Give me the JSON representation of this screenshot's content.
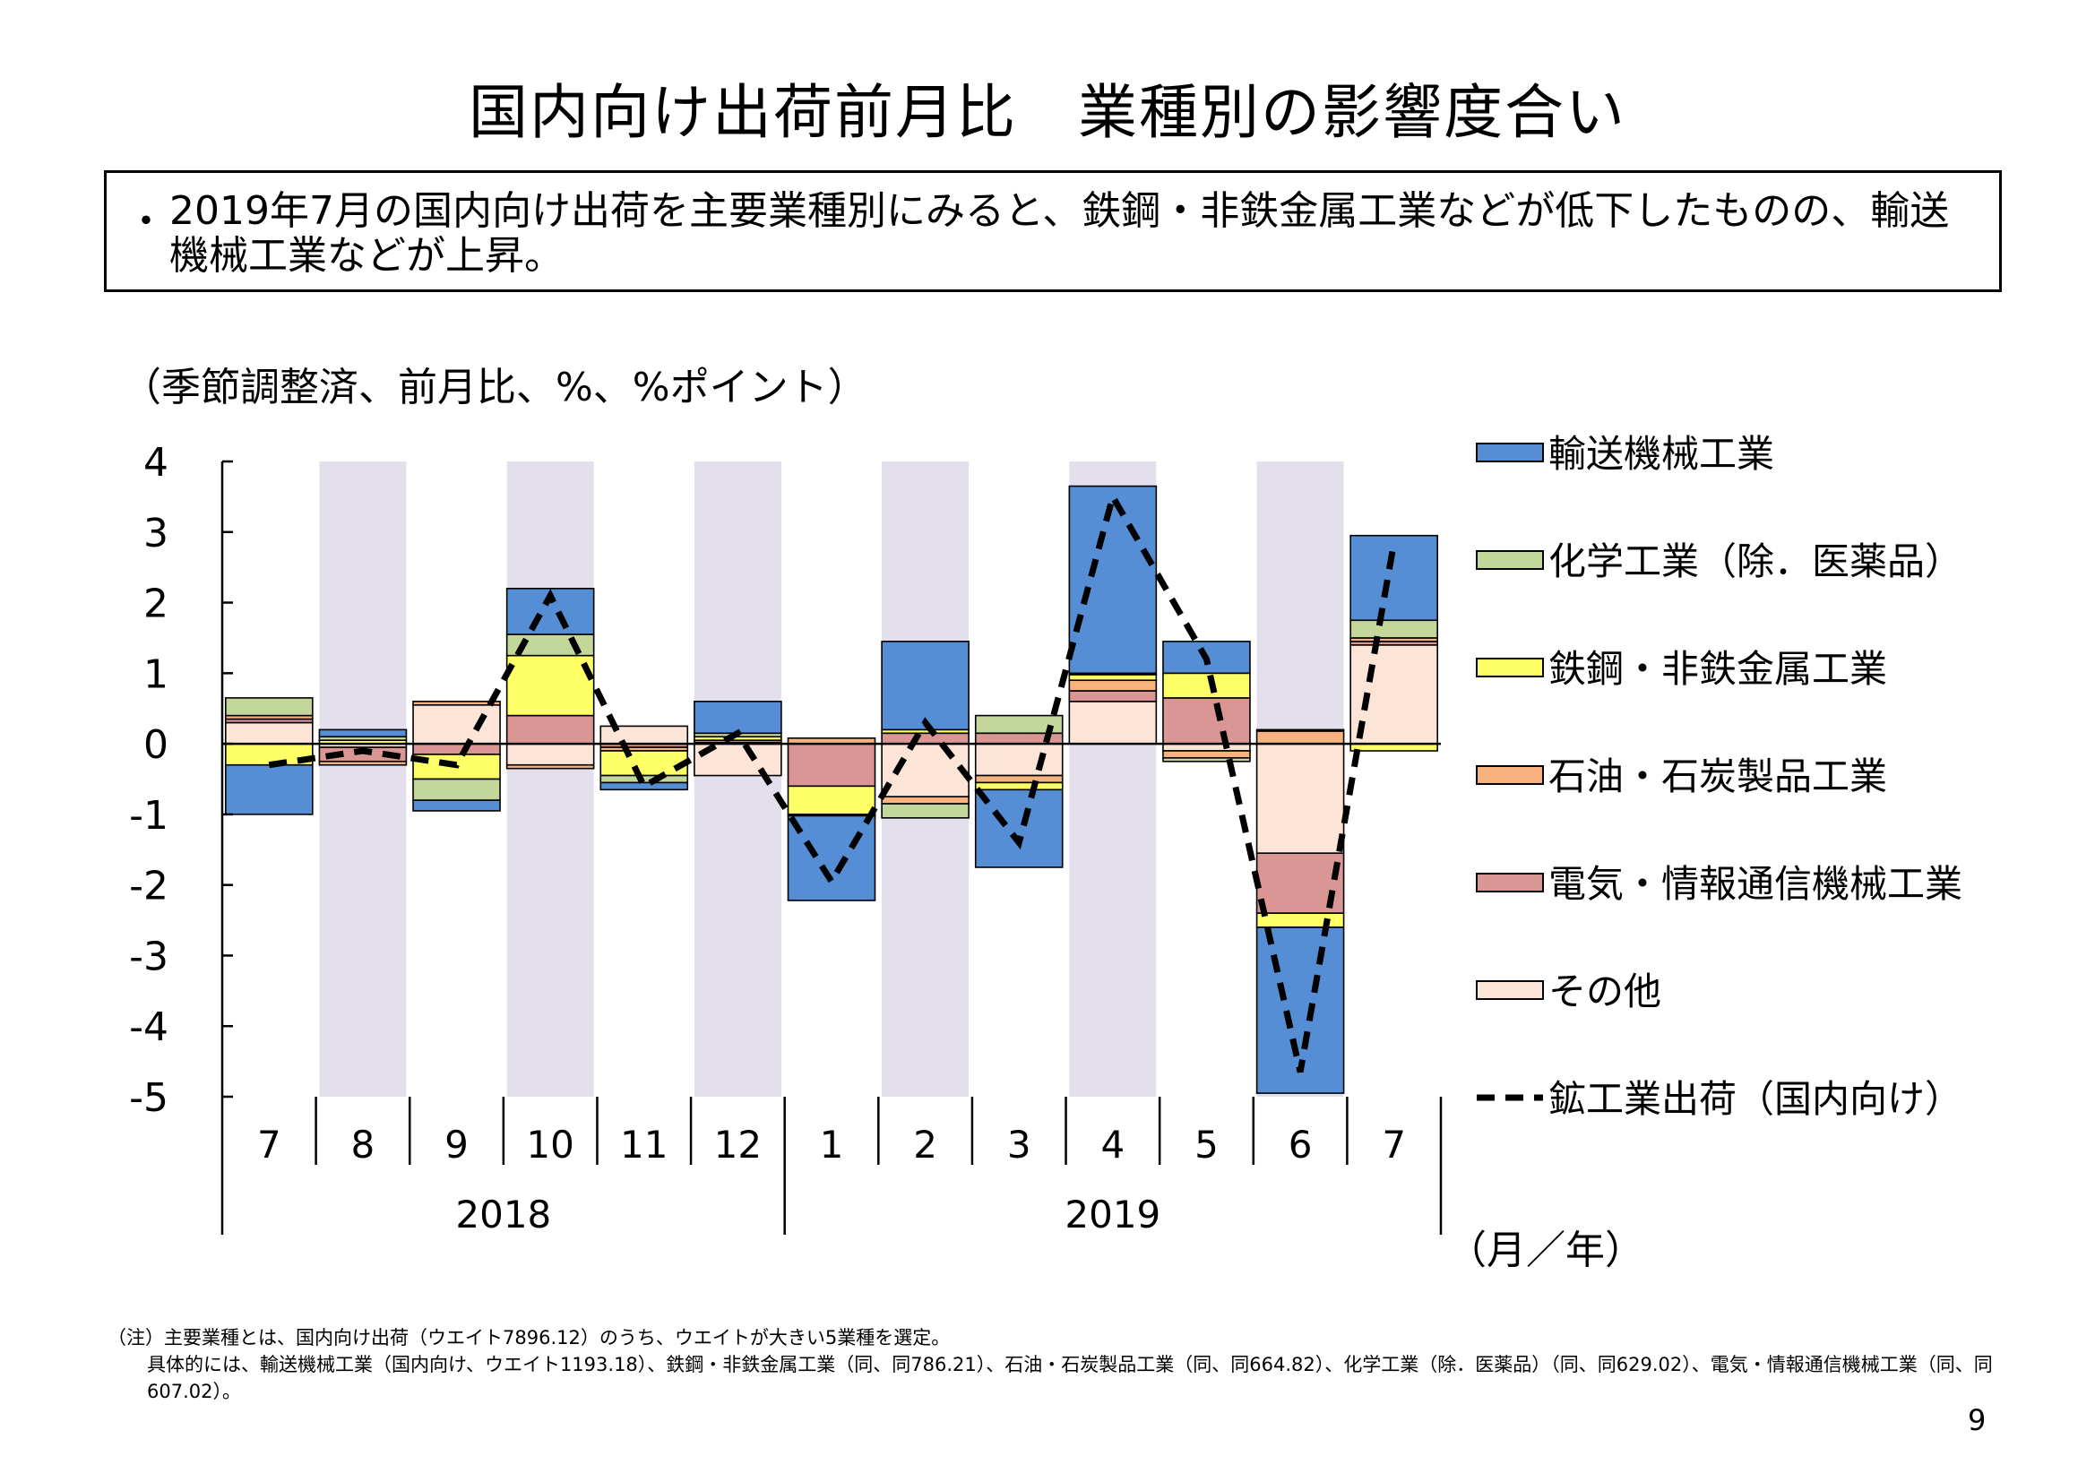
{
  "page": {
    "title": "国内向け出荷前月比　業種別の影響度合い",
    "summary_bullet": "・",
    "summary": "2019年7月の国内向け出荷を主要業種別にみると、鉄鋼・非鉄金属工業などが低下したものの、輸送機械工業などが上昇。",
    "units_note": "（季節調整済、前月比、%、%ポイント）",
    "footnote_lines": [
      "（注）主要業種とは、国内向け出荷（ウエイト7896.12）のうち、ウエイトが大きい5業種を選定。",
      "具体的には、輸送機械工業（国内向け、ウエイト1193.18）、鉄鋼・非鉄金属工業（同、同786.21）、石油・石炭製品工業（同、同664.82）、化学工業（除．医薬品）（同、同629.02）、電気・情報通信機械工業（同、同607.02）。"
    ],
    "page_number": "9"
  },
  "chart_data": {
    "type": "bar",
    "stacked": true,
    "categories": [
      "7",
      "8",
      "9",
      "10",
      "11",
      "12",
      "1",
      "2",
      "3",
      "4",
      "5",
      "6",
      "7"
    ],
    "year_groups": [
      {
        "label": "2018",
        "from": 0,
        "to": 5
      },
      {
        "label": "2019",
        "from": 6,
        "to": 12
      }
    ],
    "xlabel": "（月／年）",
    "ylim": [
      -5,
      4
    ],
    "yticks": [
      4,
      3,
      2,
      1,
      0,
      -1,
      -2,
      -3,
      -4,
      -5
    ],
    "shaded_categories": [
      1,
      3,
      5,
      7,
      9,
      11
    ],
    "shade_color": "#e3dfec",
    "series": [
      {
        "name": "その他",
        "color": "#fce4d6",
        "values": [
          0.3,
          -0.05,
          0.55,
          -0.3,
          0.25,
          -0.45,
          0.0,
          -0.75,
          -0.45,
          0.6,
          -0.1,
          -1.55,
          1.4
        ]
      },
      {
        "name": "電気・情報通信機械工業",
        "color": "#da9694",
        "values": [
          0.05,
          -0.2,
          -0.15,
          0.4,
          -0.05,
          0.02,
          -0.6,
          0.15,
          0.15,
          0.15,
          0.65,
          -0.85,
          0.05
        ]
      },
      {
        "name": "石油・石炭製品工業",
        "color": "#f7b27d",
        "values": [
          0.05,
          -0.05,
          0.05,
          -0.05,
          -0.05,
          0.03,
          0.08,
          -0.1,
          -0.1,
          0.15,
          -0.1,
          0.18,
          0.05
        ]
      },
      {
        "name": "鉄鋼・非鉄金属工業",
        "color": "#ffff66",
        "values": [
          -0.3,
          0.05,
          -0.35,
          0.85,
          -0.35,
          0.05,
          -0.4,
          0.05,
          -0.1,
          0.08,
          0.35,
          -0.2,
          -0.1
        ]
      },
      {
        "name": "化学工業（除．医薬品）",
        "color": "#c4d79b",
        "values": [
          0.25,
          0.05,
          -0.3,
          0.3,
          -0.1,
          0.05,
          -0.02,
          -0.2,
          0.25,
          0.02,
          -0.05,
          0.02,
          0.25
        ]
      },
      {
        "name": "輸送機械工業",
        "color": "#558ed5",
        "values": [
          -0.7,
          0.1,
          -0.15,
          0.65,
          -0.1,
          0.45,
          -1.2,
          1.25,
          -1.1,
          2.65,
          0.45,
          -2.35,
          1.2
        ]
      }
    ],
    "line_series": {
      "name": "鉱工業出荷（国内向け）",
      "style": "dashed",
      "color": "#000000",
      "values": [
        -0.3,
        -0.1,
        -0.3,
        2.1,
        -0.6,
        0.15,
        -1.95,
        0.3,
        -1.4,
        3.5,
        1.2,
        -4.65,
        2.85
      ]
    },
    "legend_order": [
      "輸送機械工業",
      "化学工業（除．医薬品）",
      "鉄鋼・非鉄金属工業",
      "石油・石炭製品工業",
      "電気・情報通信機械工業",
      "その他",
      "鉱工業出荷（国内向け）"
    ],
    "legend_position": "right",
    "grid": false
  }
}
